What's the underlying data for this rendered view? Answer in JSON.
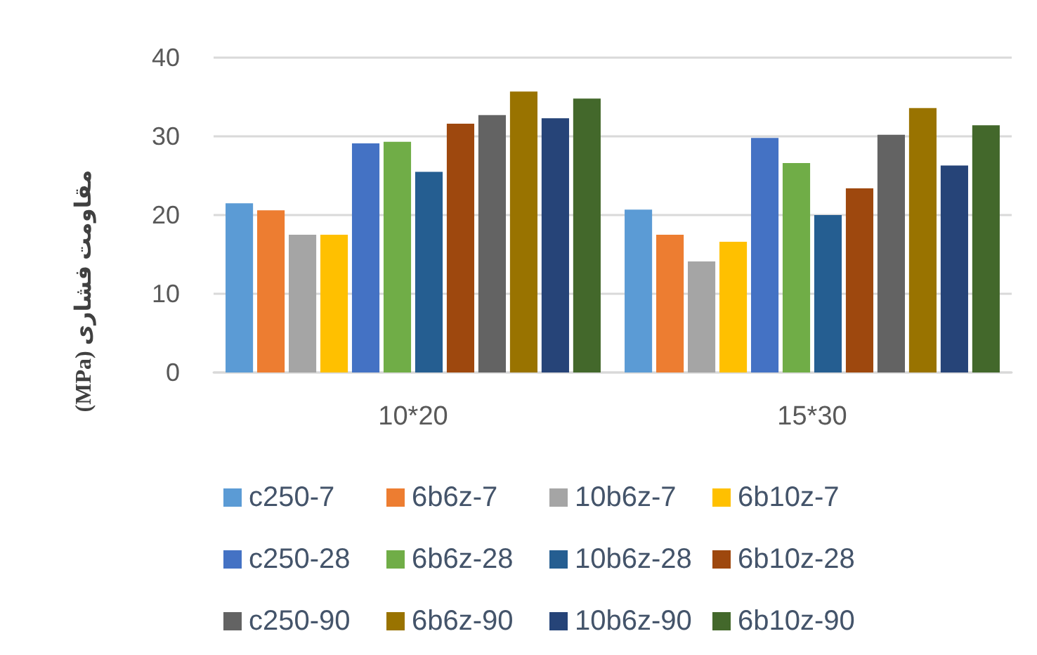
{
  "chart_data": {
    "type": "bar",
    "ylabel": "مقاومت فشاری (MPa)",
    "categories": [
      "10*20",
      "15*30"
    ],
    "series": [
      {
        "name": "c250-7",
        "color": "#5b9bd5",
        "values": [
          21.5,
          20.7
        ]
      },
      {
        "name": "6b6z-7",
        "color": "#ed7d31",
        "values": [
          20.6,
          17.5
        ]
      },
      {
        "name": "10b6z-7",
        "color": "#a5a5a5",
        "values": [
          17.5,
          14.1
        ]
      },
      {
        "name": "6b10z-7",
        "color": "#ffc000",
        "values": [
          17.5,
          16.6
        ]
      },
      {
        "name": "c250-28",
        "color": "#4472c4",
        "values": [
          29.1,
          29.8
        ]
      },
      {
        "name": "6b6z-28",
        "color": "#70ad47",
        "values": [
          29.3,
          26.6
        ]
      },
      {
        "name": "10b6z-28",
        "color": "#255e91",
        "values": [
          25.5,
          20.0
        ]
      },
      {
        "name": "6b10z-28",
        "color": "#9e480e",
        "values": [
          31.6,
          23.4
        ]
      },
      {
        "name": "c250-90",
        "color": "#636363",
        "values": [
          32.7,
          30.2
        ]
      },
      {
        "name": "6b6z-90",
        "color": "#997300",
        "values": [
          35.7,
          33.6
        ]
      },
      {
        "name": "10b6z-90",
        "color": "#264478",
        "values": [
          32.3,
          26.3
        ]
      },
      {
        "name": "6b10z-90",
        "color": "#43682b",
        "values": [
          34.8,
          31.4
        ]
      }
    ],
    "ylim": [
      0,
      40
    ],
    "yticks": [
      0,
      10,
      20,
      30,
      40
    ],
    "grid": "y",
    "legend": "bottom"
  }
}
